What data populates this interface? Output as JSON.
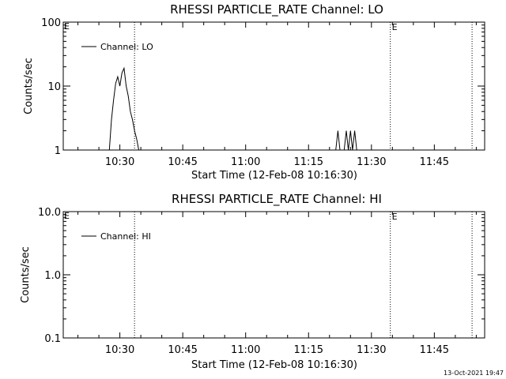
{
  "footer_timestamp": "13-Oct-2021 19:47",
  "chart_data": [
    {
      "type": "line",
      "title": "RHESSI PARTICLE_RATE Channel: LO",
      "xlabel": "Start Time (12-Feb-08 10:16:30)",
      "ylabel": "Counts/sec",
      "y_scale": "log",
      "ylim": [
        1,
        100
      ],
      "xlim": [
        "10:16:30",
        "11:57:00"
      ],
      "x_ticks": [
        "10:30",
        "10:45",
        "11:00",
        "11:15",
        "11:30",
        "11:45"
      ],
      "y_ticks": [
        "1",
        "10",
        "100"
      ],
      "grid": false,
      "legend_position": "top-left",
      "vertical_markers": [
        {
          "x": "10:33:30",
          "label": ""
        },
        {
          "x": "11:34:30",
          "label": "E"
        },
        {
          "x": "11:54:00",
          "label": ""
        }
      ],
      "corner_label": "E",
      "series": [
        {
          "name": "Channel: LO",
          "x": [
            "10:27:30",
            "10:28:00",
            "10:28:30",
            "10:29:00",
            "10:29:30",
            "10:30:00",
            "10:30:30",
            "10:31:00",
            "10:31:30",
            "10:32:00",
            "10:32:30",
            "10:33:00",
            "10:33:30",
            "10:34:00",
            "10:34:30",
            "10:35:00",
            "11:21:30",
            "11:22:00",
            "11:22:30",
            "11:23:00",
            "11:23:30",
            "11:24:00",
            "11:24:30",
            "11:25:00",
            "11:25:30",
            "11:26:00",
            "11:26:30",
            "11:27:00"
          ],
          "values": [
            1,
            3,
            6,
            11,
            14,
            10,
            16,
            19,
            10,
            7,
            4,
            3,
            2,
            1.5,
            1,
            null,
            1,
            2,
            1,
            null,
            1,
            2,
            1,
            2,
            1,
            2,
            1,
            null
          ]
        }
      ]
    },
    {
      "type": "line",
      "title": "RHESSI PARTICLE_RATE Channel: HI",
      "xlabel": "Start Time (12-Feb-08 10:16:30)",
      "ylabel": "Counts/sec",
      "y_scale": "log",
      "ylim": [
        0.1,
        10
      ],
      "xlim": [
        "10:16:30",
        "11:57:00"
      ],
      "x_ticks": [
        "10:30",
        "10:45",
        "11:00",
        "11:15",
        "11:30",
        "11:45"
      ],
      "y_ticks": [
        "0.1",
        "1.0",
        "10.0"
      ],
      "grid": false,
      "legend_position": "top-left",
      "vertical_markers": [
        {
          "x": "10:33:30",
          "label": ""
        },
        {
          "x": "11:34:30",
          "label": "E"
        },
        {
          "x": "11:54:00",
          "label": ""
        }
      ],
      "corner_label": "E",
      "series": [
        {
          "name": "Channel: HI",
          "x": [],
          "values": []
        }
      ]
    }
  ]
}
